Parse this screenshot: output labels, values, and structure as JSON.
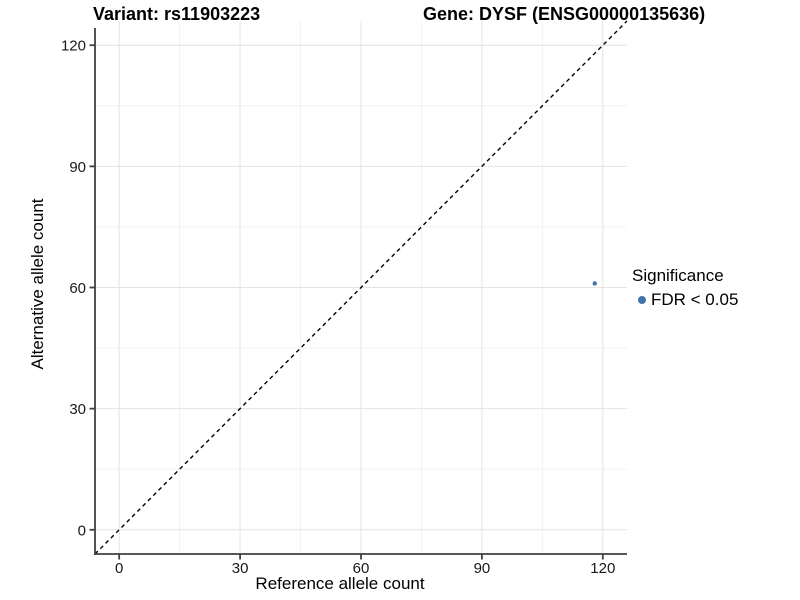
{
  "figure": {
    "title_variant": "Variant: rs11903223",
    "title_gene": "Gene: DYSF (ENSG00000135636)"
  },
  "chart_data": {
    "type": "scatter",
    "titles": [
      "Variant: rs11903223",
      "Gene: DYSF (ENSG00000135636)"
    ],
    "xlabel": "Reference allele count",
    "ylabel": "Alternative allele count",
    "xlim": [
      -6,
      126
    ],
    "ylim": [
      -6,
      126
    ],
    "x_ticks": [
      0,
      30,
      60,
      90,
      120
    ],
    "y_ticks": [
      0,
      30,
      60,
      90,
      120
    ],
    "x_minor_ticks": [
      15,
      45,
      75,
      105
    ],
    "y_minor_ticks": [
      15,
      45,
      75,
      105
    ],
    "grid": "major-and-minor",
    "points": [
      {
        "x": 118,
        "y": 61,
        "series": "FDR < 0.05"
      }
    ],
    "reference_line": {
      "slope": 1,
      "intercept": 0,
      "style": "dashed"
    },
    "legend": {
      "title": "Significance",
      "position": "right",
      "items": [
        {
          "label": "FDR < 0.05",
          "color": "#4273aa"
        }
      ]
    }
  },
  "colors": {
    "background": "#ffffff",
    "axis_line": "#404040",
    "tick_label": "#1a1a1a",
    "grid_major": "#e4e4e4",
    "grid_minor": "#f2f2f2",
    "reference_line": "#000000",
    "point": "#4273aa"
  }
}
